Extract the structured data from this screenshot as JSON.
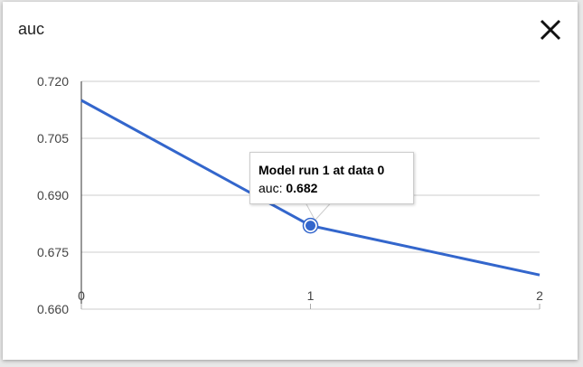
{
  "header": {
    "title": "auc",
    "close_icon": "close-icon"
  },
  "chart_data": {
    "type": "line",
    "title": "auc",
    "x": [
      0,
      1,
      2
    ],
    "series": [
      {
        "values": [
          0.715,
          0.682,
          0.669
        ],
        "color": "#3366cc"
      }
    ],
    "xlim": [
      0,
      2
    ],
    "ylim": [
      0.66,
      0.72
    ],
    "xticks": [
      "0",
      "1",
      "2"
    ],
    "yticks": [
      "0.720",
      "0.705",
      "0.690",
      "0.675",
      "0.660"
    ],
    "grid": true,
    "tooltip": {
      "title": "Model run 1 at data 0",
      "label": "auc:",
      "value": "0.682",
      "x": 1
    }
  }
}
